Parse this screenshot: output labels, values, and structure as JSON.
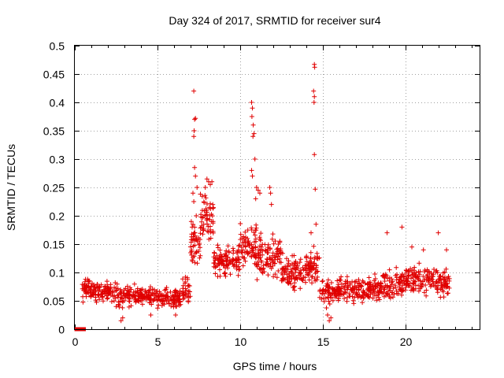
{
  "chart_data": {
    "type": "scatter",
    "title": "Day 324 of 2017, SRMTID for receiver sur4",
    "xlabel": "GPS time / hours",
    "ylabel": "SRMTID / TECUs",
    "xlim": [
      0,
      24.5
    ],
    "ylim": [
      0,
      0.5
    ],
    "grid": true,
    "x_ticks": [
      0,
      5,
      10,
      15,
      20
    ],
    "x_tick_labels": [
      "0",
      "5",
      "10",
      "15",
      "20"
    ],
    "y_ticks": [
      0,
      0.05,
      0.1,
      0.15,
      0.2,
      0.25,
      0.3,
      0.35,
      0.4,
      0.45,
      0.5
    ],
    "y_tick_labels": [
      "0",
      "0.05",
      "0.1",
      "0.15",
      "0.2",
      "0.25",
      "0.3",
      "0.35",
      "0.4",
      "0.45",
      "0.5"
    ],
    "marker": "+",
    "color": "#e00000",
    "series": [
      {
        "name": "SRMTID",
        "zero_points": [
          [
            0.1,
            0
          ],
          [
            0.25,
            0
          ],
          [
            0.45,
            0
          ],
          [
            0.55,
            0
          ]
        ],
        "segments": [
          {
            "x": [
              0.4,
              1.0
            ],
            "base": 0.07,
            "spread": 0.025,
            "count": 45
          },
          {
            "x": [
              1.0,
              2.5
            ],
            "base": 0.065,
            "spread": 0.025,
            "count": 90
          },
          {
            "x": [
              2.5,
              5.0
            ],
            "base": 0.058,
            "spread": 0.025,
            "count": 150
          },
          {
            "x": [
              5.0,
              6.5
            ],
            "base": 0.055,
            "spread": 0.025,
            "count": 90
          },
          {
            "x": [
              6.5,
              7.0
            ],
            "base": 0.07,
            "spread": 0.03,
            "count": 30
          },
          {
            "x": [
              7.0,
              7.6
            ],
            "base": 0.15,
            "spread": 0.05,
            "count": 45
          },
          {
            "x": [
              7.6,
              8.4
            ],
            "base": 0.2,
            "spread": 0.06,
            "count": 55
          },
          {
            "x": [
              8.4,
              10.0
            ],
            "base": 0.12,
            "spread": 0.035,
            "count": 110
          },
          {
            "x": [
              10.0,
              11.0
            ],
            "base": 0.15,
            "spread": 0.05,
            "count": 70
          },
          {
            "x": [
              11.0,
              12.5
            ],
            "base": 0.13,
            "spread": 0.05,
            "count": 100
          },
          {
            "x": [
              12.5,
              14.0
            ],
            "base": 0.1,
            "spread": 0.04,
            "count": 100
          },
          {
            "x": [
              14.0,
              14.8
            ],
            "base": 0.11,
            "spread": 0.045,
            "count": 60
          },
          {
            "x": [
              14.8,
              16.0
            ],
            "base": 0.065,
            "spread": 0.03,
            "count": 80
          },
          {
            "x": [
              16.0,
              18.5
            ],
            "base": 0.07,
            "spread": 0.03,
            "count": 160
          },
          {
            "x": [
              18.5,
              20.0
            ],
            "base": 0.08,
            "spread": 0.035,
            "count": 95
          },
          {
            "x": [
              20.0,
              22.7
            ],
            "base": 0.085,
            "spread": 0.035,
            "count": 170
          }
        ],
        "peaks": [
          [
            7.2,
            0.42
          ],
          [
            7.3,
            0.372
          ],
          [
            7.25,
            0.37
          ],
          [
            7.22,
            0.35
          ],
          [
            7.2,
            0.34
          ],
          [
            7.25,
            0.285
          ],
          [
            7.3,
            0.27
          ],
          [
            7.4,
            0.25
          ],
          [
            7.15,
            0.24
          ],
          [
            7.2,
            0.225
          ],
          [
            7.05,
            0.19
          ],
          [
            7.1,
            0.18
          ],
          [
            7.35,
            0.2
          ],
          [
            10.7,
            0.4
          ],
          [
            10.75,
            0.39
          ],
          [
            10.72,
            0.375
          ],
          [
            10.8,
            0.36
          ],
          [
            10.85,
            0.345
          ],
          [
            10.78,
            0.34
          ],
          [
            10.9,
            0.3
          ],
          [
            10.7,
            0.28
          ],
          [
            10.75,
            0.27
          ],
          [
            11.1,
            0.245
          ],
          [
            11.0,
            0.25
          ],
          [
            10.95,
            0.23
          ],
          [
            11.2,
            0.24
          ],
          [
            11.8,
            0.25
          ],
          [
            11.85,
            0.24
          ],
          [
            11.9,
            0.22
          ],
          [
            14.5,
            0.467
          ],
          [
            14.52,
            0.462
          ],
          [
            14.45,
            0.42
          ],
          [
            14.5,
            0.41
          ],
          [
            14.48,
            0.4
          ],
          [
            14.5,
            0.308
          ],
          [
            14.55,
            0.247
          ],
          [
            14.6,
            0.185
          ],
          [
            14.3,
            0.17
          ],
          [
            8.0,
            0.265
          ],
          [
            8.1,
            0.26
          ],
          [
            8.2,
            0.255
          ],
          [
            7.9,
            0.25
          ],
          [
            8.3,
            0.26
          ],
          [
            19.8,
            0.18
          ],
          [
            18.9,
            0.17
          ],
          [
            22.0,
            0.17
          ],
          [
            20.4,
            0.145
          ],
          [
            21.1,
            0.14
          ],
          [
            22.5,
            0.14
          ],
          [
            15.4,
            0.015
          ],
          [
            15.5,
            0.02
          ],
          [
            15.3,
            0.025
          ],
          [
            2.9,
            0.02
          ],
          [
            2.8,
            0.015
          ],
          [
            4.6,
            0.025
          ],
          [
            6.1,
            0.025
          ]
        ]
      }
    ]
  }
}
